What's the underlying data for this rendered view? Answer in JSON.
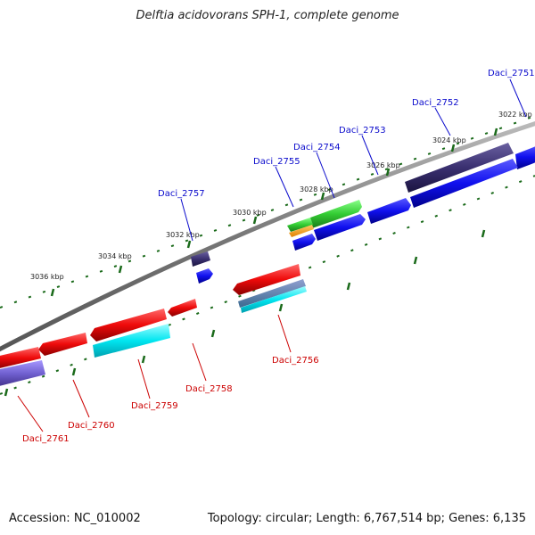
{
  "title": "Delftia acidovorans SPH-1, complete genome",
  "footer": {
    "accession": "Accession: NC_010002",
    "summary": "Topology: circular; Length: 6,767,514 bp; Genes: 6,135"
  },
  "scale_labels": [
    "3022 kbp",
    "3024 kbp",
    "3026 kbp",
    "3028 kbp",
    "3030 kbp",
    "3032 kbp",
    "3034 kbp",
    "3036 kbp"
  ],
  "gene_labels": {
    "top": [
      "Daci_2751",
      "Daci_2752",
      "Daci_2753",
      "Daci_2754",
      "Daci_2755",
      "Daci_2757"
    ],
    "bottom": [
      "Daci_2756",
      "Daci_2758",
      "Daci_2759",
      "Daci_2760",
      "Daci_2761"
    ]
  },
  "colors": {
    "top_label": "#0a0acc",
    "bottom_label": "#cc0000",
    "forward_gene": "#1010ee",
    "forward_dark": "#3a3070",
    "reverse_gene": "#ee0a0a",
    "reverse_light": "#00e6f0",
    "reverse_purple": "#7060d0",
    "green_gene": "#33cc33",
    "orange_gene": "#ff9900",
    "tick": "#1a6a1a",
    "backbone": "#888888"
  }
}
